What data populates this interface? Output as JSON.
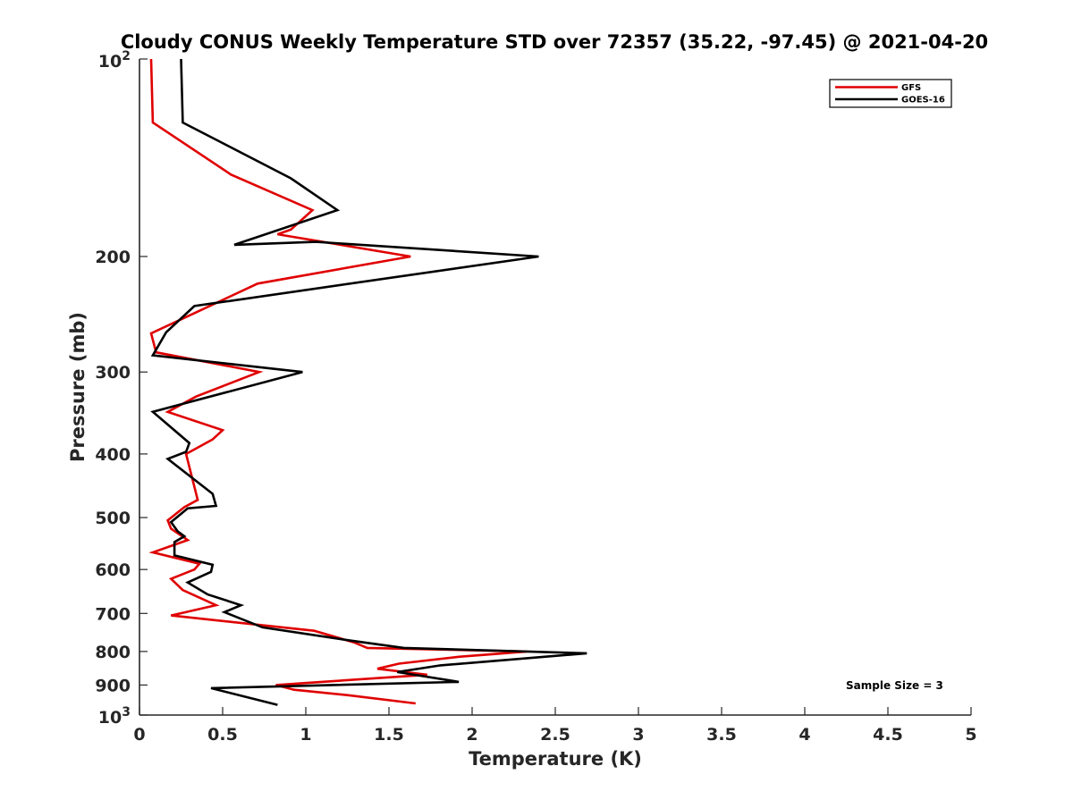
{
  "chart_data": {
    "type": "line",
    "title": "Cloudy CONUS Weekly Temperature STD over 72357 (35.22, -97.45) @ 2021-04-20",
    "xlabel": "Temperature (K)",
    "ylabel": "Pressure (mb)",
    "xlim": [
      0,
      5
    ],
    "ylim": [
      100,
      1000
    ],
    "y_scale": "log",
    "y_reversed": true,
    "grid": false,
    "legend_position": "top-right",
    "x_ticks": [
      "0",
      "0.5",
      "1",
      "1.5",
      "2",
      "2.5",
      "3",
      "3.5",
      "4",
      "4.5",
      "5"
    ],
    "y_ticks": [
      {
        "value": 100,
        "base": "10",
        "exp": "2",
        "label": ""
      },
      {
        "value": 200,
        "base": "",
        "exp": "",
        "label": "200"
      },
      {
        "value": 300,
        "base": "",
        "exp": "",
        "label": "300"
      },
      {
        "value": 400,
        "base": "",
        "exp": "",
        "label": "400"
      },
      {
        "value": 500,
        "base": "",
        "exp": "",
        "label": "500"
      },
      {
        "value": 600,
        "base": "",
        "exp": "",
        "label": "600"
      },
      {
        "value": 700,
        "base": "",
        "exp": "",
        "label": "700"
      },
      {
        "value": 800,
        "base": "",
        "exp": "",
        "label": "800"
      },
      {
        "value": 900,
        "base": "",
        "exp": "",
        "label": "900"
      },
      {
        "value": 1000,
        "base": "10",
        "exp": "3",
        "label": ""
      }
    ],
    "annotation": "Sample Size = 3",
    "series": [
      {
        "name": "GFS",
        "color": "#e00000",
        "points": [
          [
            0.07,
            100
          ],
          [
            0.08,
            125
          ],
          [
            0.55,
            150
          ],
          [
            1.04,
            170
          ],
          [
            0.91,
            182
          ],
          [
            0.83,
            185
          ],
          [
            1.63,
            200
          ],
          [
            0.71,
            220
          ],
          [
            0.07,
            262
          ],
          [
            0.1,
            280
          ],
          [
            0.72,
            300
          ],
          [
            0.34,
            327
          ],
          [
            0.17,
            345
          ],
          [
            0.5,
            368
          ],
          [
            0.44,
            380
          ],
          [
            0.28,
            400
          ],
          [
            0.35,
            470
          ],
          [
            0.27,
            482
          ],
          [
            0.17,
            505
          ],
          [
            0.19,
            520
          ],
          [
            0.29,
            541
          ],
          [
            0.08,
            565
          ],
          [
            0.36,
            588
          ],
          [
            0.33,
            600
          ],
          [
            0.19,
            620
          ],
          [
            0.26,
            645
          ],
          [
            0.46,
            680
          ],
          [
            0.19,
            705
          ],
          [
            1.05,
            744
          ],
          [
            1.29,
            775
          ],
          [
            1.37,
            790
          ],
          [
            2.33,
            800
          ],
          [
            1.92,
            815
          ],
          [
            1.56,
            835
          ],
          [
            1.43,
            850
          ],
          [
            1.73,
            868
          ],
          [
            0.82,
            900
          ],
          [
            0.93,
            915
          ],
          [
            1.26,
            933
          ],
          [
            1.66,
            960
          ]
        ]
      },
      {
        "name": "GOES-16",
        "color": "#000000",
        "points": [
          [
            0.25,
            100
          ],
          [
            0.26,
            125
          ],
          [
            0.91,
            152
          ],
          [
            1.19,
            170
          ],
          [
            0.57,
            192
          ],
          [
            1.06,
            190
          ],
          [
            2.4,
            200
          ],
          [
            0.33,
            238
          ],
          [
            0.16,
            261
          ],
          [
            0.08,
            283
          ],
          [
            0.98,
            300
          ],
          [
            0.08,
            345
          ],
          [
            0.3,
            385
          ],
          [
            0.28,
            397
          ],
          [
            0.17,
            407
          ],
          [
            0.44,
            460
          ],
          [
            0.46,
            480
          ],
          [
            0.29,
            484
          ],
          [
            0.19,
            508
          ],
          [
            0.23,
            525
          ],
          [
            0.27,
            534
          ],
          [
            0.21,
            545
          ],
          [
            0.21,
            571
          ],
          [
            0.44,
            590
          ],
          [
            0.43,
            605
          ],
          [
            0.29,
            628
          ],
          [
            0.41,
            655
          ],
          [
            0.61,
            680
          ],
          [
            0.51,
            697
          ],
          [
            0.74,
            735
          ],
          [
            1.27,
            770
          ],
          [
            1.59,
            790
          ],
          [
            2.69,
            805
          ],
          [
            1.81,
            840
          ],
          [
            1.55,
            860
          ],
          [
            1.92,
            890
          ],
          [
            0.43,
            910
          ],
          [
            0.83,
            965
          ]
        ]
      }
    ]
  }
}
